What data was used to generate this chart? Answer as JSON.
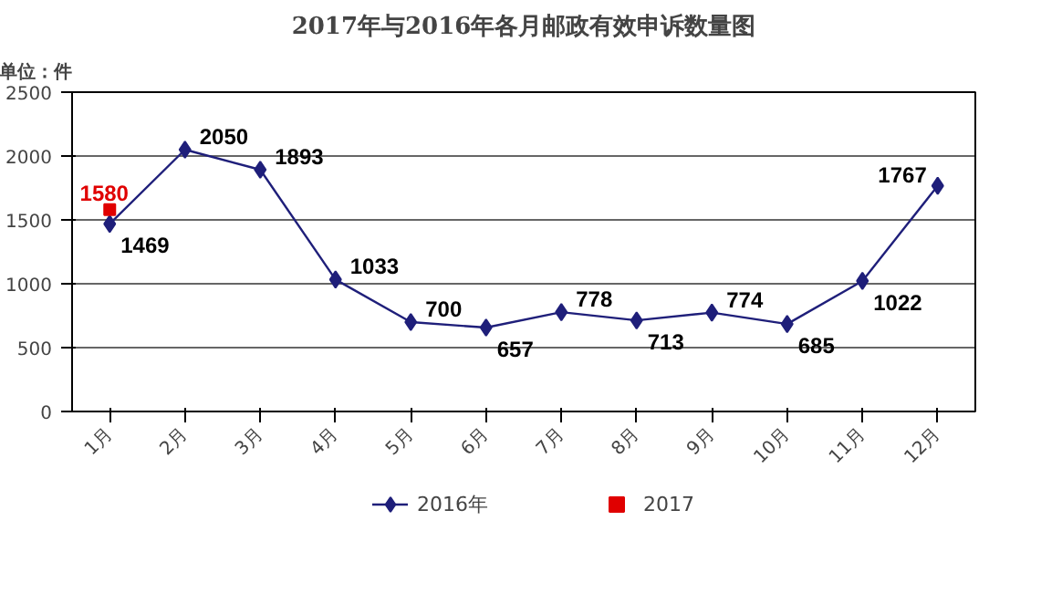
{
  "chart_data": {
    "type": "line",
    "title": "2017年与2016年各月邮政有效申诉数量图",
    "categories": [
      "1月",
      "2月",
      "3月",
      "4月",
      "5月",
      "6月",
      "7月",
      "8月",
      "9月",
      "10月",
      "11月",
      "12月"
    ],
    "series": [
      {
        "name": "2016年",
        "color": "#1f1f7a",
        "marker": "diamond",
        "values": [
          1469,
          2050,
          1893,
          1033,
          700,
          657,
          778,
          713,
          774,
          685,
          1022,
          1767
        ]
      },
      {
        "name": "2017",
        "color": "#e00000",
        "marker": "square",
        "values": [
          1580,
          null,
          null,
          null,
          null,
          null,
          null,
          null,
          null,
          null,
          null,
          null
        ]
      }
    ],
    "ylim": [
      0,
      2500
    ],
    "yticks": [
      0,
      500,
      1000,
      1500,
      2000,
      2500
    ],
    "grid": "y",
    "legend": "bottom",
    "data_labels": true,
    "line_style": "solid",
    "annotations": [
      "单位：件"
    ]
  }
}
